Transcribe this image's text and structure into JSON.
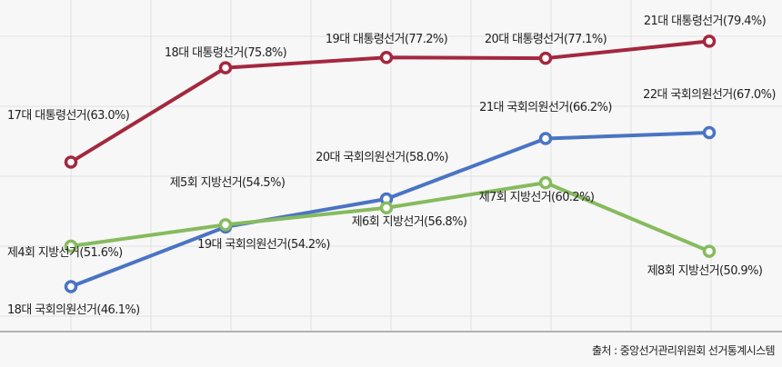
{
  "chart_data": {
    "type": "line",
    "title": "",
    "xlabel": "",
    "ylabel": "",
    "x": [
      0,
      1,
      2,
      3,
      4
    ],
    "ylim": [
      40,
      85
    ],
    "grid": true,
    "legend": "none",
    "series": [
      {
        "color": "#a3283f",
        "values": [
          63.0,
          75.8,
          77.2,
          77.1,
          79.4
        ],
        "labels": [
          "17대 대통령선거(63.0%)",
          "18대 대통령선거(75.8%)",
          "19대 대통령선거(77.2%)",
          "20대 대통령선거(77.1%)",
          "21대 대통령선거(79.4%)"
        ]
      },
      {
        "color": "#4a74c4",
        "values": [
          46.1,
          54.2,
          58.0,
          66.2,
          67.0
        ],
        "labels": [
          "18대 국회의원선거(46.1%)",
          "19대 국회의원선거(54.2%)",
          "20대 국회의원선거(58.0%)",
          "21대 국회의원선거(66.2%)",
          "22대 국회의원선거(67.0%)"
        ]
      },
      {
        "color": "#86bb5e",
        "values": [
          51.6,
          54.5,
          56.8,
          60.2,
          50.9
        ],
        "labels": [
          "제4회 지방선거(51.6%)",
          "제5회 지방선거(54.5%)",
          "제6회 지방선거(56.8%)",
          "제7회 지방선거(60.2%)",
          "제8회 지방선거(50.9%)"
        ]
      }
    ],
    "source": "출처 : 중앙선거관리위원회 선거통계시스템"
  }
}
